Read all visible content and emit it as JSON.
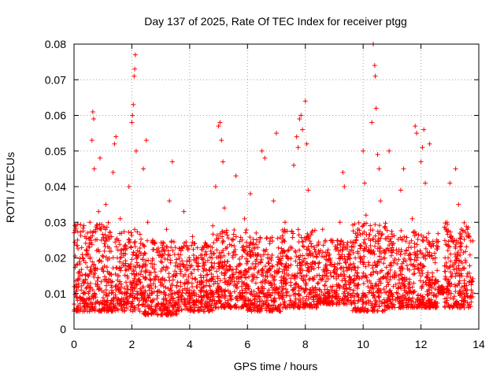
{
  "chart_data": {
    "type": "scatter",
    "title": "Day 137 of 2025, Rate Of TEC Index for receiver ptgg",
    "xlabel": "GPS time / hours",
    "ylabel": "ROTI / TECUs",
    "xlim": [
      0,
      14
    ],
    "ylim": [
      0,
      0.08
    ],
    "x_ticks": [
      0,
      2,
      4,
      6,
      8,
      10,
      12,
      14
    ],
    "y_ticks": [
      0,
      0.01,
      0.02,
      0.03,
      0.04,
      0.05,
      0.06,
      0.07,
      0.08
    ],
    "x_tick_labels": [
      "0",
      "2",
      "4",
      "6",
      "8",
      "10",
      "12",
      "14"
    ],
    "y_tick_labels": [
      "0",
      "0.01",
      "0.02",
      "0.03",
      "0.04",
      "0.05",
      "0.06",
      "0.07",
      "0.08"
    ],
    "grid": true,
    "marker": "plus",
    "color": "#ff0000",
    "series": [
      {
        "points": [
          [
            0.05,
            0.012
          ],
          [
            0.08,
            0.018
          ],
          [
            0.1,
            0.009
          ],
          [
            0.12,
            0.025
          ],
          [
            0.15,
            0.006
          ],
          [
            0.2,
            0.015
          ],
          [
            0.25,
            0.011
          ],
          [
            0.3,
            0.02
          ],
          [
            0.35,
            0.008
          ],
          [
            0.4,
            0.014
          ],
          [
            0.45,
            0.022
          ],
          [
            0.5,
            0.01
          ],
          [
            0.55,
            0.03
          ],
          [
            0.6,
            0.016
          ],
          [
            0.62,
            0.053
          ],
          [
            0.65,
            0.061
          ],
          [
            0.68,
            0.059
          ],
          [
            0.7,
            0.045
          ],
          [
            0.75,
            0.028
          ],
          [
            0.8,
            0.012
          ],
          [
            0.85,
            0.033
          ],
          [
            0.9,
            0.048
          ],
          [
            0.95,
            0.019
          ],
          [
            1.0,
            0.008
          ],
          [
            1.05,
            0.024
          ],
          [
            1.1,
            0.035
          ],
          [
            1.2,
            0.014
          ],
          [
            1.3,
            0.026
          ],
          [
            1.35,
            0.044
          ],
          [
            1.4,
            0.052
          ],
          [
            1.45,
            0.054
          ],
          [
            1.5,
            0.02
          ],
          [
            1.55,
            0.011
          ],
          [
            1.6,
            0.031
          ],
          [
            1.7,
            0.018
          ],
          [
            1.8,
            0.009
          ],
          [
            1.9,
            0.04
          ],
          [
            2.0,
            0.058
          ],
          [
            2.02,
            0.06
          ],
          [
            2.05,
            0.063
          ],
          [
            2.08,
            0.071
          ],
          [
            2.1,
            0.073
          ],
          [
            2.12,
            0.077
          ],
          [
            2.15,
            0.05
          ],
          [
            2.2,
            0.022
          ],
          [
            2.3,
            0.013
          ],
          [
            2.4,
            0.045
          ],
          [
            2.5,
            0.053
          ],
          [
            2.55,
            0.03
          ],
          [
            2.6,
            0.016
          ],
          [
            2.7,
            0.01
          ],
          [
            2.8,
            0.024
          ],
          [
            2.9,
            0.007
          ],
          [
            3.0,
            0.019
          ],
          [
            3.1,
            0.012
          ],
          [
            3.2,
            0.028
          ],
          [
            3.3,
            0.036
          ],
          [
            3.4,
            0.047
          ],
          [
            3.5,
            0.015
          ],
          [
            3.6,
            0.009
          ],
          [
            3.7,
            0.022
          ],
          [
            3.8,
            0.033
          ],
          [
            3.9,
            0.018
          ],
          [
            4.0,
            0.011
          ],
          [
            4.1,
            0.026
          ],
          [
            4.2,
            0.014
          ],
          [
            4.3,
            0.02
          ],
          [
            4.4,
            0.008
          ],
          [
            4.5,
            0.017
          ],
          [
            4.6,
            0.023
          ],
          [
            4.7,
            0.012
          ],
          [
            4.8,
            0.029
          ],
          [
            4.9,
            0.04
          ],
          [
            5.0,
            0.057
          ],
          [
            5.05,
            0.058
          ],
          [
            5.1,
            0.053
          ],
          [
            5.15,
            0.047
          ],
          [
            5.2,
            0.034
          ],
          [
            5.3,
            0.019
          ],
          [
            5.4,
            0.01
          ],
          [
            5.5,
            0.025
          ],
          [
            5.6,
            0.043
          ],
          [
            5.7,
            0.016
          ],
          [
            5.8,
            0.012
          ],
          [
            5.9,
            0.031
          ],
          [
            6.0,
            0.021
          ],
          [
            6.1,
            0.038
          ],
          [
            6.2,
            0.014
          ],
          [
            6.3,
            0.027
          ],
          [
            6.4,
            0.009
          ],
          [
            6.5,
            0.05
          ],
          [
            6.6,
            0.048
          ],
          [
            6.7,
            0.02
          ],
          [
            6.8,
            0.013
          ],
          [
            6.9,
            0.036
          ],
          [
            7.0,
            0.055
          ],
          [
            7.1,
            0.017
          ],
          [
            7.2,
            0.011
          ],
          [
            7.3,
            0.03
          ],
          [
            7.4,
            0.022
          ],
          [
            7.5,
            0.008
          ],
          [
            7.6,
            0.046
          ],
          [
            7.7,
            0.054
          ],
          [
            7.75,
            0.051
          ],
          [
            7.8,
            0.059
          ],
          [
            7.85,
            0.06
          ],
          [
            7.9,
            0.056
          ],
          [
            8.0,
            0.064
          ],
          [
            8.05,
            0.052
          ],
          [
            8.1,
            0.039
          ],
          [
            8.2,
            0.024
          ],
          [
            8.3,
            0.014
          ],
          [
            8.4,
            0.021
          ],
          [
            8.5,
            0.011
          ],
          [
            8.6,
            0.028
          ],
          [
            8.7,
            0.018
          ],
          [
            8.8,
            0.009
          ],
          [
            8.9,
            0.025
          ],
          [
            9.0,
            0.016
          ],
          [
            9.1,
            0.012
          ],
          [
            9.2,
            0.03
          ],
          [
            9.3,
            0.044
          ],
          [
            9.35,
            0.04
          ],
          [
            9.4,
            0.019
          ],
          [
            9.5,
            0.01
          ],
          [
            9.6,
            0.023
          ],
          [
            9.7,
            0.015
          ],
          [
            9.8,
            0.027
          ],
          [
            9.9,
            0.02
          ],
          [
            10.0,
            0.05
          ],
          [
            10.05,
            0.041
          ],
          [
            10.1,
            0.032
          ],
          [
            10.2,
            0.018
          ],
          [
            10.3,
            0.058
          ],
          [
            10.35,
            0.08
          ],
          [
            10.4,
            0.074
          ],
          [
            10.42,
            0.071
          ],
          [
            10.45,
            0.062
          ],
          [
            10.5,
            0.049
          ],
          [
            10.55,
            0.045
          ],
          [
            10.6,
            0.036
          ],
          [
            10.7,
            0.02
          ],
          [
            10.8,
            0.012
          ],
          [
            10.9,
            0.05
          ],
          [
            11.0,
            0.026
          ],
          [
            11.1,
            0.016
          ],
          [
            11.2,
            0.01
          ],
          [
            11.3,
            0.039
          ],
          [
            11.4,
            0.045
          ],
          [
            11.5,
            0.022
          ],
          [
            11.6,
            0.014
          ],
          [
            11.7,
            0.031
          ],
          [
            11.8,
            0.057
          ],
          [
            11.85,
            0.055
          ],
          [
            11.9,
            0.018
          ],
          [
            12.0,
            0.047
          ],
          [
            12.05,
            0.051
          ],
          [
            12.1,
            0.056
          ],
          [
            12.15,
            0.041
          ],
          [
            12.2,
            0.025
          ],
          [
            12.3,
            0.052
          ],
          [
            12.4,
            0.013
          ],
          [
            12.5,
            0.02
          ],
          [
            12.9,
            0.03
          ],
          [
            13.0,
            0.041
          ],
          [
            13.1,
            0.018
          ],
          [
            13.2,
            0.045
          ],
          [
            13.3,
            0.035
          ],
          [
            13.4,
            0.024
          ],
          [
            13.5,
            0.012
          ],
          [
            13.6,
            0.028
          ],
          [
            13.7,
            0.009
          ]
        ]
      }
    ],
    "dense_bands": [
      {
        "x": [
          0.0,
          1.2
        ],
        "y": [
          0.005,
          0.03
        ]
      },
      {
        "x": [
          1.2,
          2.4
        ],
        "y": [
          0.005,
          0.028
        ]
      },
      {
        "x": [
          2.4,
          3.6
        ],
        "y": [
          0.004,
          0.025
        ]
      },
      {
        "x": [
          3.6,
          4.8
        ],
        "y": [
          0.005,
          0.025
        ]
      },
      {
        "x": [
          4.8,
          6.0
        ],
        "y": [
          0.006,
          0.028
        ]
      },
      {
        "x": [
          6.0,
          7.2
        ],
        "y": [
          0.005,
          0.026
        ]
      },
      {
        "x": [
          7.2,
          8.4
        ],
        "y": [
          0.006,
          0.028
        ]
      },
      {
        "x": [
          8.4,
          9.6
        ],
        "y": [
          0.007,
          0.025
        ]
      },
      {
        "x": [
          9.6,
          10.8
        ],
        "y": [
          0.005,
          0.03
        ]
      },
      {
        "x": [
          10.8,
          11.8
        ],
        "y": [
          0.006,
          0.028
        ]
      },
      {
        "x": [
          11.8,
          12.6
        ],
        "y": [
          0.006,
          0.027
        ]
      },
      {
        "x": [
          12.6,
          12.8
        ],
        "y": [
          0.01,
          0.012
        ]
      },
      {
        "x": [
          12.8,
          13.8
        ],
        "y": [
          0.006,
          0.03
        ]
      }
    ]
  }
}
